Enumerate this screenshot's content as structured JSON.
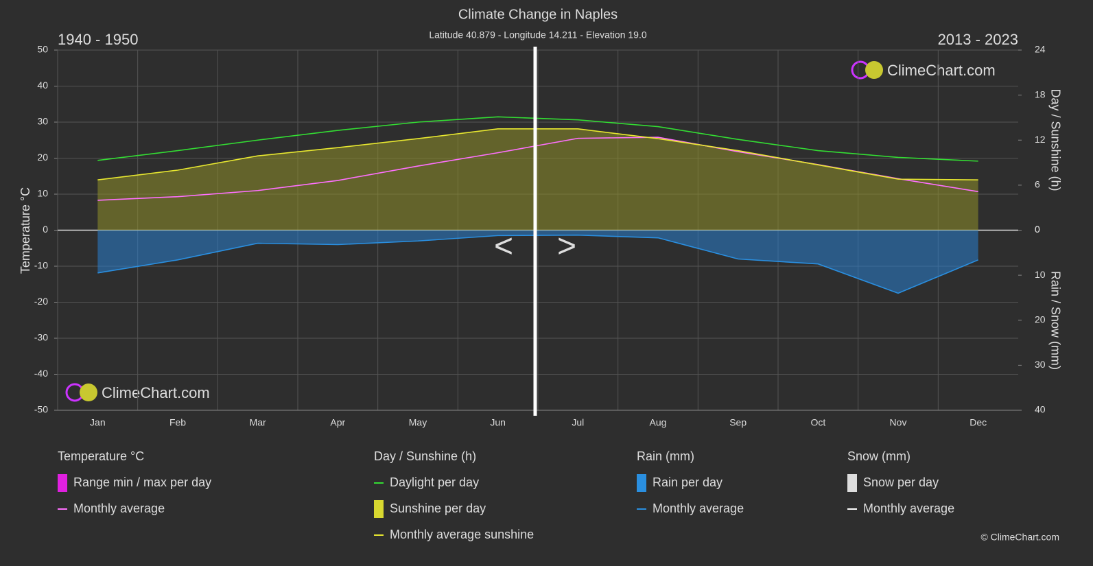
{
  "chart_data": {
    "type": "line",
    "title": "Climate Change in Naples",
    "subtitle": "Latitude 40.879 - Longitude 14.211 - Elevation 19.0",
    "period_left": "1940 - 1950",
    "period_right": "2013 - 2023",
    "ylabel": "Temperature °C",
    "y2label": "Day / Sunshine (h)",
    "y3label": "Rain / Snow (mm)",
    "categories": [
      "Jan",
      "Feb",
      "Mar",
      "Apr",
      "May",
      "Jun",
      "Jul",
      "Aug",
      "Sep",
      "Oct",
      "Nov",
      "Dec"
    ],
    "ylim": [
      -50,
      50
    ],
    "yticks": [
      -50,
      -40,
      -30,
      -20,
      -10,
      0,
      10,
      20,
      30,
      40,
      50
    ],
    "y2lim": [
      0,
      24
    ],
    "y2ticks": [
      0,
      6,
      12,
      18,
      24
    ],
    "y3lim": [
      0,
      40
    ],
    "y3ticks": [
      0,
      10,
      20,
      30,
      40
    ],
    "grid": true,
    "series": [
      {
        "color": "#8f8f2a",
        "area": true,
        "axis": "y2",
        "values": [
          6.7,
          8.0,
          9.9,
          11.0,
          12.2,
          13.5,
          13.5,
          12.2,
          10.6,
          8.7,
          6.8,
          6.7
        ]
      },
      {
        "color": "#2a7fd0",
        "area": true,
        "axis": "y3",
        "values": [
          9.5,
          6.6,
          2.9,
          3.2,
          2.4,
          1.2,
          1.1,
          1.7,
          6.4,
          7.5,
          14.0,
          6.6
        ]
      },
      {
        "color": "#ff70ff",
        "axis": "y",
        "values": [
          8.3,
          9.3,
          11.0,
          13.8,
          17.8,
          21.5,
          25.5,
          25.8,
          21.8,
          18.2,
          14.3,
          10.7
        ]
      },
      {
        "color": "#33dd33",
        "axis": "y2",
        "values": [
          9.3,
          10.6,
          12.0,
          13.3,
          14.4,
          15.1,
          14.7,
          13.8,
          12.1,
          10.6,
          9.7,
          9.2
        ]
      },
      {
        "color": "#e8e830",
        "axis": "y2",
        "values": [
          6.7,
          8.0,
          9.9,
          11.0,
          12.2,
          13.5,
          13.5,
          12.2,
          10.6,
          8.7,
          6.8,
          6.7
        ]
      },
      {
        "color": "#2a8fe0",
        "axis": "y3",
        "values": [
          9.5,
          6.6,
          2.9,
          3.2,
          2.4,
          1.2,
          1.1,
          1.7,
          6.4,
          7.5,
          14.0,
          6.6
        ]
      }
    ],
    "legend": [
      {
        "title": "Temperature °C",
        "items": [
          {
            "label": "Range min / max per day",
            "kind": "swatch",
            "color": "#e020e0"
          },
          {
            "label": "Monthly average",
            "kind": "line",
            "color": "#ff70ff"
          }
        ]
      },
      {
        "title": "Day / Sunshine (h)",
        "items": [
          {
            "label": "Daylight per day",
            "kind": "line",
            "color": "#33dd33"
          },
          {
            "label": "Sunshine per day",
            "kind": "swatch",
            "color": "#d8d830"
          },
          {
            "label": "Monthly average sunshine",
            "kind": "line",
            "color": "#e8e830"
          }
        ]
      },
      {
        "title": "Rain (mm)",
        "items": [
          {
            "label": "Rain per day",
            "kind": "swatch",
            "color": "#2a8fe0"
          },
          {
            "label": "Monthly average",
            "kind": "line",
            "color": "#2a8fe0"
          }
        ]
      },
      {
        "title": "Snow (mm)",
        "items": [
          {
            "label": "Snow per day",
            "kind": "swatch",
            "color": "#dddddd"
          },
          {
            "label": "Monthly average",
            "kind": "line",
            "color": "#ffffff"
          }
        ]
      }
    ]
  },
  "branding": {
    "logo_text": "ClimeChart.com",
    "copyright": "© ClimeChart.com"
  },
  "nav": {
    "prev": "<",
    "next": ">"
  }
}
